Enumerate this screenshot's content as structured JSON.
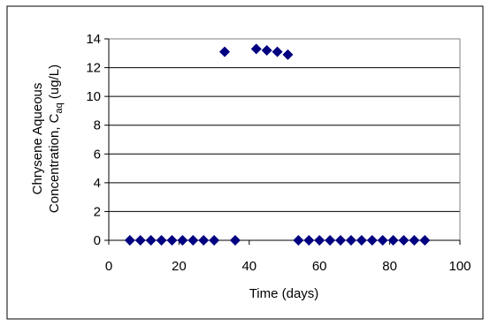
{
  "chart_data": {
    "type": "scatter",
    "xlabel": "Time (days)",
    "ylabel_line1": "Chrysene Aqueous",
    "ylabel_line2_main": "Concentration, C",
    "ylabel_line2_sub": "aq",
    "ylabel_line2_unit": " (ug/L)",
    "xlim": [
      0,
      100
    ],
    "ylim": [
      0,
      14
    ],
    "xticks": [
      0,
      20,
      40,
      60,
      80,
      100
    ],
    "yticks": [
      0,
      2,
      4,
      6,
      8,
      10,
      12,
      14
    ],
    "grid": "horizontal",
    "legend": "none",
    "marker": "diamond",
    "marker_color": "#000080",
    "series": [
      {
        "points": [
          [
            6,
            0
          ],
          [
            9,
            0
          ],
          [
            12,
            0
          ],
          [
            15,
            0
          ],
          [
            18,
            0
          ],
          [
            21,
            0
          ],
          [
            24,
            0
          ],
          [
            27,
            0
          ],
          [
            30,
            0
          ],
          [
            33,
            13.1
          ],
          [
            36,
            0
          ],
          [
            42,
            13.3
          ],
          [
            45,
            13.2
          ],
          [
            48,
            13.1
          ],
          [
            51,
            12.9
          ],
          [
            54,
            0
          ],
          [
            57,
            0
          ],
          [
            60,
            0
          ],
          [
            63,
            0
          ],
          [
            66,
            0
          ],
          [
            69,
            0
          ],
          [
            72,
            0
          ],
          [
            75,
            0
          ],
          [
            78,
            0
          ],
          [
            81,
            0
          ],
          [
            84,
            0
          ],
          [
            87,
            0
          ],
          [
            90,
            0
          ]
        ]
      }
    ]
  }
}
